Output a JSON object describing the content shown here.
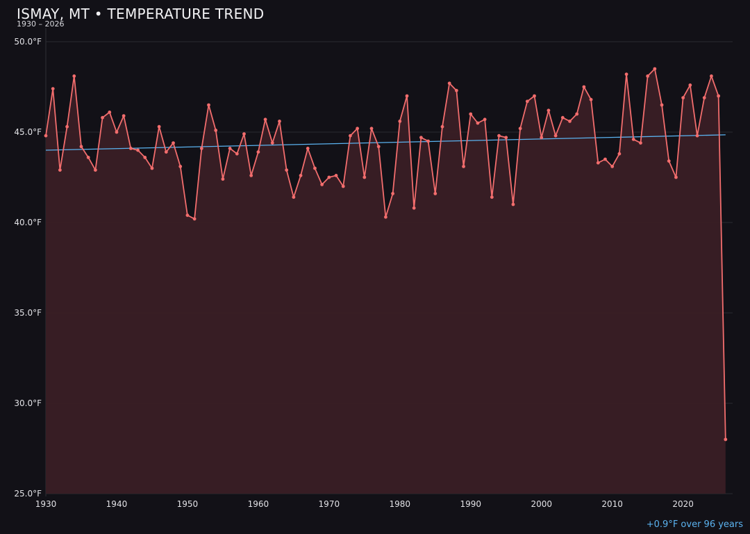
{
  "header": {
    "title": "ISMAY, MT • TEMPERATURE TREND",
    "subtitle": "1930 – 2026"
  },
  "trend_note": "+0.9°F over 96 years",
  "colors": {
    "background": "#121117",
    "series_line": "#f26d6d",
    "series_fill": "#3a1f25",
    "trend_line": "#5bb3f0",
    "grid": "#2a2a31",
    "tick_text": "#e2e2e6"
  },
  "chart_data": {
    "type": "line",
    "title": "ISMAY, MT • TEMPERATURE TREND",
    "subtitle": "1930 – 2026",
    "xlabel": "",
    "ylabel": "",
    "xlim": [
      1930,
      2027
    ],
    "ylim": [
      25.0,
      50.0
    ],
    "x_ticks": [
      1930,
      1940,
      1950,
      1960,
      1970,
      1980,
      1990,
      2000,
      2010,
      2020
    ],
    "y_ticks": [
      25.0,
      30.0,
      35.0,
      40.0,
      45.0,
      50.0
    ],
    "y_tick_labels": [
      "25.0°F",
      "30.0°F",
      "35.0°F",
      "40.0°F",
      "45.0°F",
      "50.0°F"
    ],
    "grid": true,
    "area_fill": true,
    "series": [
      {
        "x": [
          1930,
          1931,
          1932,
          1933,
          1934,
          1935,
          1936,
          1937,
          1938,
          1939,
          1940,
          1941,
          1942,
          1943,
          1944,
          1945,
          1946,
          1947,
          1948,
          1949,
          1950,
          1951,
          1952,
          1953,
          1954,
          1955,
          1956,
          1957,
          1958,
          1959,
          1960,
          1961,
          1962,
          1963,
          1964,
          1965,
          1966,
          1967,
          1968,
          1969,
          1970,
          1971,
          1972,
          1973,
          1974,
          1975,
          1976,
          1977,
          1978,
          1979,
          1980,
          1981,
          1982,
          1983,
          1984,
          1985,
          1986,
          1987,
          1988,
          1989,
          1990,
          1991,
          1992,
          1993,
          1994,
          1995,
          1996,
          1997,
          1998,
          1999,
          2000,
          2001,
          2002,
          2003,
          2004,
          2005,
          2006,
          2007,
          2008,
          2009,
          2010,
          2011,
          2012,
          2013,
          2014,
          2015,
          2016,
          2017,
          2018,
          2019,
          2020,
          2021,
          2022,
          2023,
          2024,
          2025,
          2026
        ],
        "values": [
          44.8,
          47.4,
          42.9,
          45.3,
          48.1,
          44.2,
          43.6,
          42.9,
          45.8,
          46.1,
          45.0,
          45.9,
          44.1,
          44.0,
          43.6,
          43.0,
          45.3,
          43.9,
          44.4,
          43.1,
          40.4,
          40.2,
          44.1,
          46.5,
          45.1,
          42.4,
          44.1,
          43.8,
          44.9,
          42.6,
          43.9,
          45.7,
          44.4,
          45.6,
          42.9,
          41.4,
          42.6,
          44.1,
          43.0,
          42.1,
          42.5,
          42.6,
          42.0,
          44.8,
          45.2,
          42.5,
          45.2,
          44.2,
          40.3,
          41.6,
          45.6,
          47.0,
          40.8,
          44.7,
          44.5,
          41.6,
          45.3,
          47.7,
          47.3,
          43.1,
          46.0,
          45.5,
          45.7,
          41.4,
          44.8,
          44.7,
          41.0,
          45.2,
          46.7,
          47.0,
          44.7,
          46.2,
          44.8,
          45.8,
          45.6,
          46.0,
          47.5,
          46.8,
          43.3,
          43.5,
          43.1,
          43.8,
          48.2,
          44.6,
          44.4,
          48.1,
          48.5,
          46.5,
          43.4,
          42.5,
          46.9,
          47.6,
          44.8,
          46.9,
          48.1,
          47.0,
          28.0
        ]
      }
    ],
    "trend": {
      "start": [
        1930,
        44.0
      ],
      "end": [
        2026,
        44.85
      ]
    }
  }
}
